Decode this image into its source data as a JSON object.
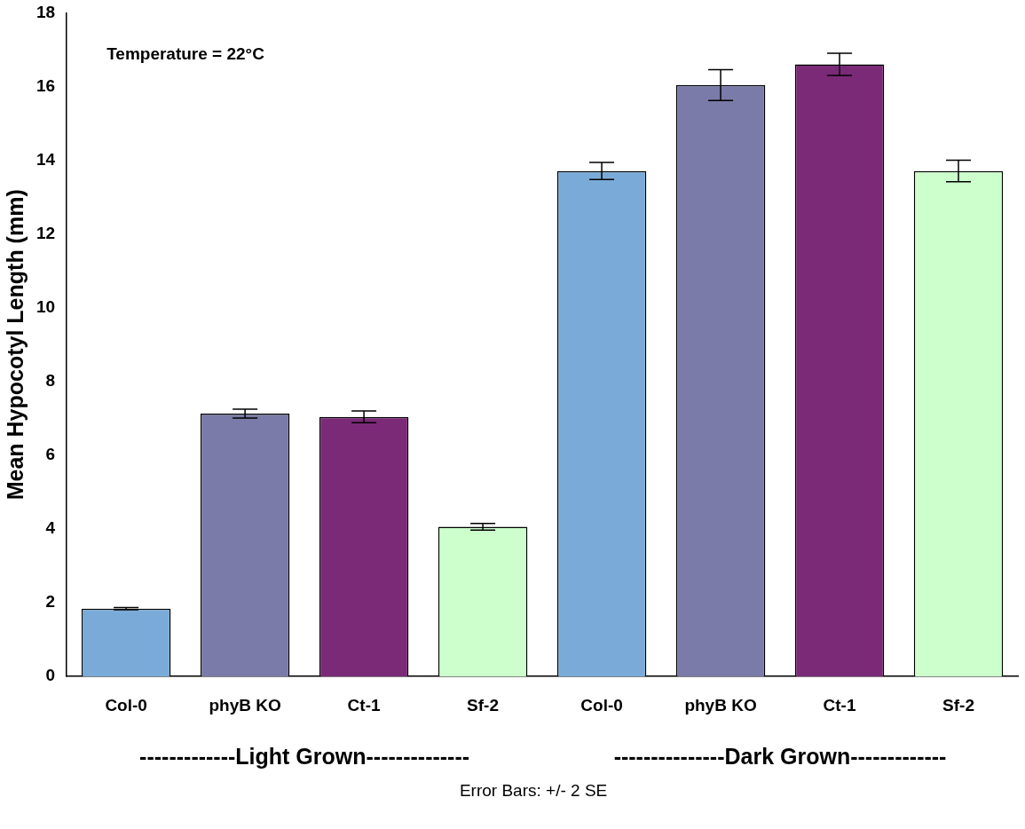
{
  "chart_data": {
    "type": "bar",
    "categories": [
      "Col-0",
      "phyB KO",
      "Ct-1",
      "Sf-2",
      "Col-0",
      "phyB KO",
      "Ct-1",
      "Sf-2"
    ],
    "values": [
      1.84,
      7.13,
      7.04,
      4.06,
      13.71,
      16.04,
      16.6,
      13.71
    ],
    "errors": [
      0.03,
      0.12,
      0.16,
      0.09,
      0.23,
      0.42,
      0.3,
      0.29
    ],
    "colors": [
      "#7aabd8",
      "#7a7ba8",
      "#7b2a78",
      "#ccffcc",
      "#7aabd8",
      "#7a7ba8",
      "#7b2a78",
      "#ccffcc"
    ],
    "ylabel": "Mean Hypocotyl Length (mm)",
    "ylim": [
      0,
      18
    ],
    "yticks": [
      0,
      2,
      4,
      6,
      8,
      10,
      12,
      14,
      16,
      18
    ],
    "annotations": [
      "Temperature = 22°C",
      "-------------Light Grown--------------",
      "---------------Dark Grown-------------",
      "Error Bars: +/- 2 SE"
    ],
    "grid": false,
    "legend": false
  }
}
